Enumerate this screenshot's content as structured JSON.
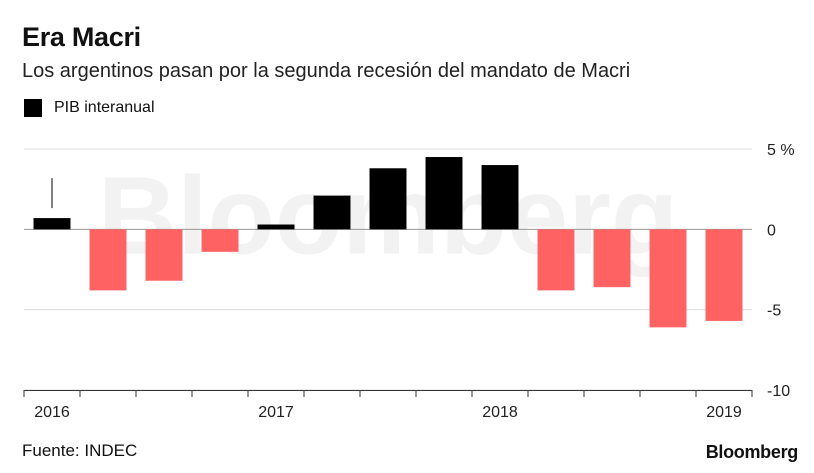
{
  "header": {
    "title": "Era Macri",
    "subtitle": "Los argentinos pasan por la segunda recesión del mandato de Macri"
  },
  "legend": {
    "label": "PIB interanual",
    "color": "#000000"
  },
  "footer": {
    "source": "Fuente: INDEC",
    "brand": "Bloomberg"
  },
  "watermark": "Bloomberg",
  "colors": {
    "positive": "#000000",
    "negative": "#ff6262",
    "grid": "#dddddd",
    "axis": "#333333"
  },
  "chart_data": {
    "type": "bar",
    "categories": [
      "2016 T1",
      "2016 T2",
      "2016 T3",
      "2016 T4",
      "2017 T1",
      "2017 T2",
      "2017 T3",
      "2017 T4",
      "2018 T1",
      "2018 T2",
      "2018 T3",
      "2018 T4",
      "2019 T1"
    ],
    "series": [
      {
        "name": "PIB interanual",
        "values": [
          0.7,
          -3.8,
          -3.2,
          -1.4,
          0.3,
          2.1,
          3.8,
          4.5,
          4.0,
          -3.8,
          -3.6,
          -6.1,
          -5.7
        ]
      }
    ],
    "ylim": [
      -10,
      5
    ],
    "yticks": [
      5,
      0,
      -5,
      -10
    ],
    "ytick_labels": [
      "5 %",
      "0",
      "-5",
      "-10"
    ],
    "xtick_labels": [
      "2016",
      "2017",
      "2018",
      "2019"
    ],
    "xtick_category_index": [
      0,
      4,
      8,
      12
    ],
    "grid": true,
    "legend_position": "top-left"
  }
}
